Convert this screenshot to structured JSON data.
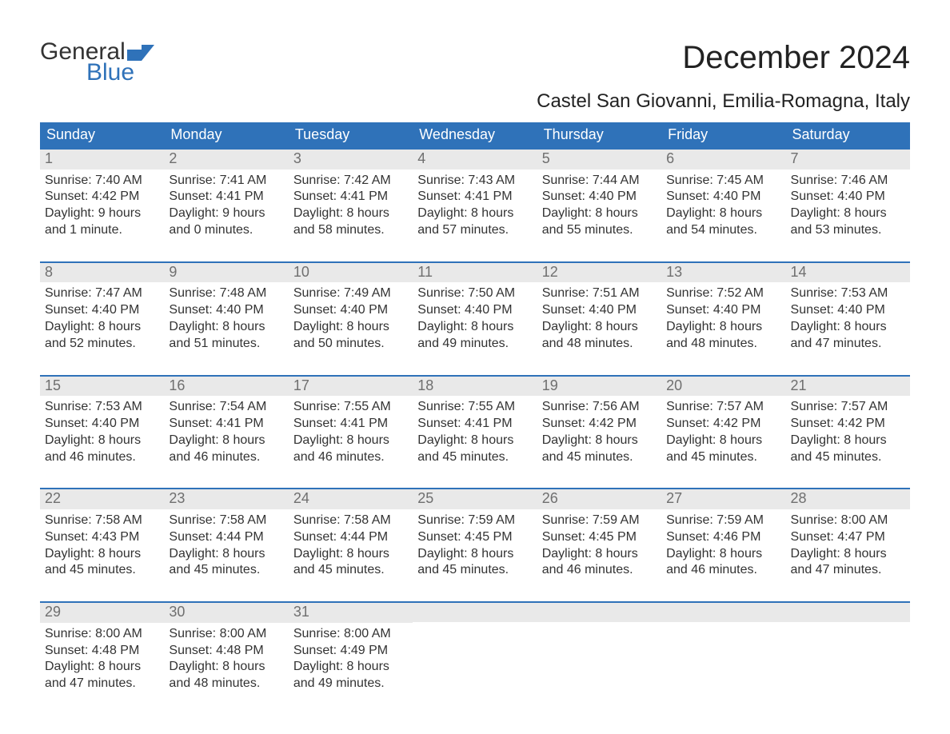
{
  "brand": {
    "word1": "General",
    "word2": "Blue",
    "flag_color": "#2f72b9"
  },
  "title": "December 2024",
  "location": "Castel San Giovanni, Emilia-Romagna, Italy",
  "colors": {
    "header_bg": "#2f72b9",
    "header_text": "#ffffff",
    "daynum_bg": "#e9e9e9",
    "daynum_text": "#6f6f6f",
    "body_text": "#333333",
    "week_border": "#2f72b9",
    "page_bg": "#ffffff"
  },
  "fonts": {
    "title_pt": 40,
    "location_pt": 24,
    "weekday_pt": 18,
    "daynum_pt": 18,
    "body_pt": 16,
    "logo_pt": 30
  },
  "weekdays": [
    "Sunday",
    "Monday",
    "Tuesday",
    "Wednesday",
    "Thursday",
    "Friday",
    "Saturday"
  ],
  "weeks": [
    [
      {
        "n": "1",
        "sr": "Sunrise: 7:40 AM",
        "ss": "Sunset: 4:42 PM",
        "d1": "Daylight: 9 hours",
        "d2": "and 1 minute."
      },
      {
        "n": "2",
        "sr": "Sunrise: 7:41 AM",
        "ss": "Sunset: 4:41 PM",
        "d1": "Daylight: 9 hours",
        "d2": "and 0 minutes."
      },
      {
        "n": "3",
        "sr": "Sunrise: 7:42 AM",
        "ss": "Sunset: 4:41 PM",
        "d1": "Daylight: 8 hours",
        "d2": "and 58 minutes."
      },
      {
        "n": "4",
        "sr": "Sunrise: 7:43 AM",
        "ss": "Sunset: 4:41 PM",
        "d1": "Daylight: 8 hours",
        "d2": "and 57 minutes."
      },
      {
        "n": "5",
        "sr": "Sunrise: 7:44 AM",
        "ss": "Sunset: 4:40 PM",
        "d1": "Daylight: 8 hours",
        "d2": "and 55 minutes."
      },
      {
        "n": "6",
        "sr": "Sunrise: 7:45 AM",
        "ss": "Sunset: 4:40 PM",
        "d1": "Daylight: 8 hours",
        "d2": "and 54 minutes."
      },
      {
        "n": "7",
        "sr": "Sunrise: 7:46 AM",
        "ss": "Sunset: 4:40 PM",
        "d1": "Daylight: 8 hours",
        "d2": "and 53 minutes."
      }
    ],
    [
      {
        "n": "8",
        "sr": "Sunrise: 7:47 AM",
        "ss": "Sunset: 4:40 PM",
        "d1": "Daylight: 8 hours",
        "d2": "and 52 minutes."
      },
      {
        "n": "9",
        "sr": "Sunrise: 7:48 AM",
        "ss": "Sunset: 4:40 PM",
        "d1": "Daylight: 8 hours",
        "d2": "and 51 minutes."
      },
      {
        "n": "10",
        "sr": "Sunrise: 7:49 AM",
        "ss": "Sunset: 4:40 PM",
        "d1": "Daylight: 8 hours",
        "d2": "and 50 minutes."
      },
      {
        "n": "11",
        "sr": "Sunrise: 7:50 AM",
        "ss": "Sunset: 4:40 PM",
        "d1": "Daylight: 8 hours",
        "d2": "and 49 minutes."
      },
      {
        "n": "12",
        "sr": "Sunrise: 7:51 AM",
        "ss": "Sunset: 4:40 PM",
        "d1": "Daylight: 8 hours",
        "d2": "and 48 minutes."
      },
      {
        "n": "13",
        "sr": "Sunrise: 7:52 AM",
        "ss": "Sunset: 4:40 PM",
        "d1": "Daylight: 8 hours",
        "d2": "and 48 minutes."
      },
      {
        "n": "14",
        "sr": "Sunrise: 7:53 AM",
        "ss": "Sunset: 4:40 PM",
        "d1": "Daylight: 8 hours",
        "d2": "and 47 minutes."
      }
    ],
    [
      {
        "n": "15",
        "sr": "Sunrise: 7:53 AM",
        "ss": "Sunset: 4:40 PM",
        "d1": "Daylight: 8 hours",
        "d2": "and 46 minutes."
      },
      {
        "n": "16",
        "sr": "Sunrise: 7:54 AM",
        "ss": "Sunset: 4:41 PM",
        "d1": "Daylight: 8 hours",
        "d2": "and 46 minutes."
      },
      {
        "n": "17",
        "sr": "Sunrise: 7:55 AM",
        "ss": "Sunset: 4:41 PM",
        "d1": "Daylight: 8 hours",
        "d2": "and 46 minutes."
      },
      {
        "n": "18",
        "sr": "Sunrise: 7:55 AM",
        "ss": "Sunset: 4:41 PM",
        "d1": "Daylight: 8 hours",
        "d2": "and 45 minutes."
      },
      {
        "n": "19",
        "sr": "Sunrise: 7:56 AM",
        "ss": "Sunset: 4:42 PM",
        "d1": "Daylight: 8 hours",
        "d2": "and 45 minutes."
      },
      {
        "n": "20",
        "sr": "Sunrise: 7:57 AM",
        "ss": "Sunset: 4:42 PM",
        "d1": "Daylight: 8 hours",
        "d2": "and 45 minutes."
      },
      {
        "n": "21",
        "sr": "Sunrise: 7:57 AM",
        "ss": "Sunset: 4:42 PM",
        "d1": "Daylight: 8 hours",
        "d2": "and 45 minutes."
      }
    ],
    [
      {
        "n": "22",
        "sr": "Sunrise: 7:58 AM",
        "ss": "Sunset: 4:43 PM",
        "d1": "Daylight: 8 hours",
        "d2": "and 45 minutes."
      },
      {
        "n": "23",
        "sr": "Sunrise: 7:58 AM",
        "ss": "Sunset: 4:44 PM",
        "d1": "Daylight: 8 hours",
        "d2": "and 45 minutes."
      },
      {
        "n": "24",
        "sr": "Sunrise: 7:58 AM",
        "ss": "Sunset: 4:44 PM",
        "d1": "Daylight: 8 hours",
        "d2": "and 45 minutes."
      },
      {
        "n": "25",
        "sr": "Sunrise: 7:59 AM",
        "ss": "Sunset: 4:45 PM",
        "d1": "Daylight: 8 hours",
        "d2": "and 45 minutes."
      },
      {
        "n": "26",
        "sr": "Sunrise: 7:59 AM",
        "ss": "Sunset: 4:45 PM",
        "d1": "Daylight: 8 hours",
        "d2": "and 46 minutes."
      },
      {
        "n": "27",
        "sr": "Sunrise: 7:59 AM",
        "ss": "Sunset: 4:46 PM",
        "d1": "Daylight: 8 hours",
        "d2": "and 46 minutes."
      },
      {
        "n": "28",
        "sr": "Sunrise: 8:00 AM",
        "ss": "Sunset: 4:47 PM",
        "d1": "Daylight: 8 hours",
        "d2": "and 47 minutes."
      }
    ],
    [
      {
        "n": "29",
        "sr": "Sunrise: 8:00 AM",
        "ss": "Sunset: 4:48 PM",
        "d1": "Daylight: 8 hours",
        "d2": "and 47 minutes."
      },
      {
        "n": "30",
        "sr": "Sunrise: 8:00 AM",
        "ss": "Sunset: 4:48 PM",
        "d1": "Daylight: 8 hours",
        "d2": "and 48 minutes."
      },
      {
        "n": "31",
        "sr": "Sunrise: 8:00 AM",
        "ss": "Sunset: 4:49 PM",
        "d1": "Daylight: 8 hours",
        "d2": "and 49 minutes."
      },
      null,
      null,
      null,
      null
    ]
  ]
}
